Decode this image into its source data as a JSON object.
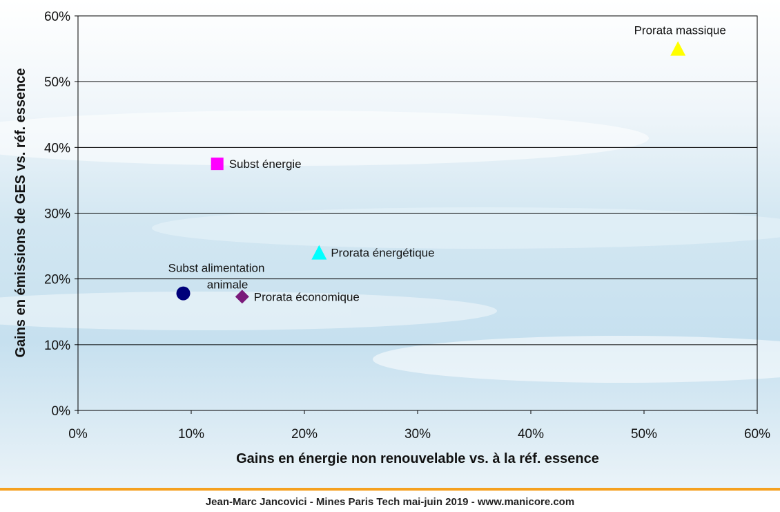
{
  "chart_data": {
    "type": "scatter",
    "xlabel": "Gains en énergie non renouvelable vs. à la réf. essence",
    "ylabel": "Gains en émissions de GES vs. réf. essence",
    "xlim": [
      0,
      60
    ],
    "ylim": [
      0,
      60
    ],
    "x_ticks": [
      "0%",
      "10%",
      "20%",
      "30%",
      "40%",
      "50%",
      "60%"
    ],
    "y_ticks": [
      "0%",
      "10%",
      "20%",
      "30%",
      "40%",
      "50%",
      "60%"
    ],
    "grid": "horizontal",
    "points": [
      {
        "label_lines": [
          "Subst alimentation",
          "animale"
        ],
        "x": 9.3,
        "y": 17.8,
        "marker": "circle",
        "color": "#00007a"
      },
      {
        "label_lines": [
          "Prorata économique"
        ],
        "x": 14.5,
        "y": 17.3,
        "marker": "diamond",
        "color": "#7a1a7a"
      },
      {
        "label_lines": [
          "Subst énergie"
        ],
        "x": 12.3,
        "y": 37.5,
        "marker": "square",
        "color": "#ff00ff"
      },
      {
        "label_lines": [
          "Prorata énergétique"
        ],
        "x": 21.3,
        "y": 24,
        "marker": "triangle",
        "color": "#00ffff"
      },
      {
        "label_lines": [
          "Prorata massique"
        ],
        "x": 53,
        "y": 55,
        "marker": "triangle",
        "color": "#ffff00"
      }
    ]
  },
  "footer": {
    "text": "Jean-Marc Jancovici - Mines Paris Tech mai-juin 2019 - www.manicore.com",
    "accent_color": "#f5a01f"
  }
}
